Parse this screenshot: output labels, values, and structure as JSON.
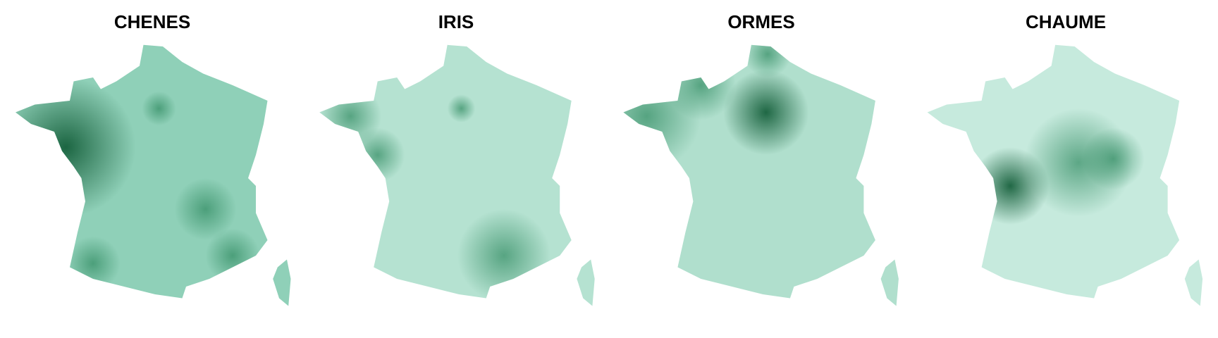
{
  "panels": [
    {
      "title": "CHENES"
    },
    {
      "title": "IRIS"
    },
    {
      "title": "ORMES"
    },
    {
      "title": "CHAUME"
    }
  ]
}
